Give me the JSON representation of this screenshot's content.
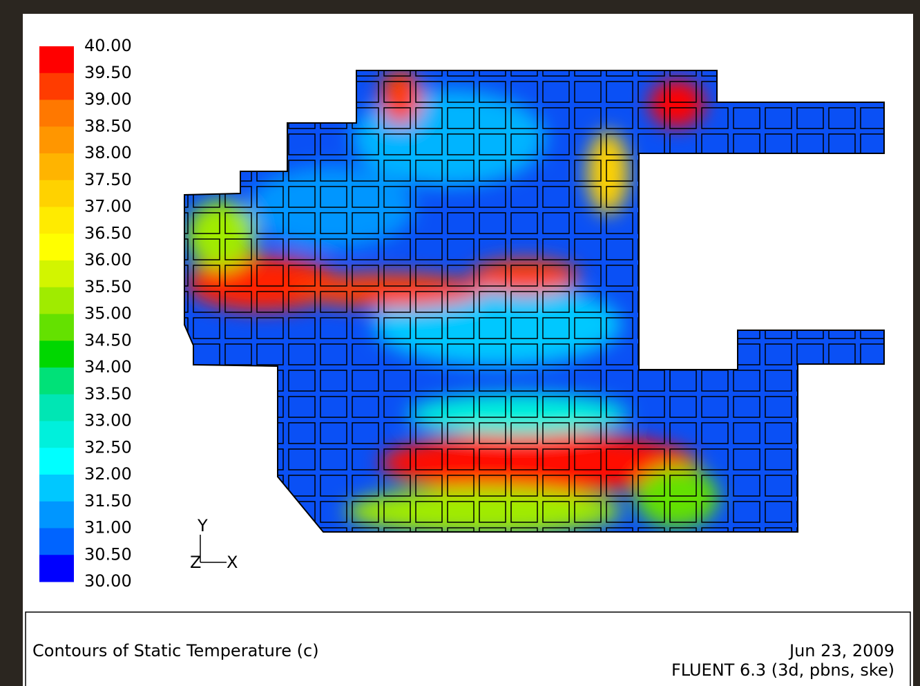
{
  "colorbar": {
    "labels": [
      "40.00",
      "39.50",
      "39.00",
      "38.50",
      "38.00",
      "37.50",
      "37.00",
      "36.50",
      "36.00",
      "35.50",
      "35.00",
      "34.50",
      "34.00",
      "33.50",
      "33.00",
      "32.50",
      "32.00",
      "31.50",
      "31.00",
      "30.50",
      "30.00"
    ],
    "colors": [
      "#ff0000",
      "#ff3c00",
      "#ff7800",
      "#ff9600",
      "#ffb400",
      "#ffd200",
      "#ffeb00",
      "#ffff00",
      "#d2f500",
      "#a0eb00",
      "#64e100",
      "#00d700",
      "#00e178",
      "#00e6b4",
      "#00f0dc",
      "#00ffff",
      "#00c8ff",
      "#0096ff",
      "#0064ff",
      "#0000ff"
    ]
  },
  "axes": {
    "y": "Y",
    "z": "Z",
    "x": "X"
  },
  "footer": {
    "title": "Contours of Static Temperature (c)",
    "date": "Jun 23, 2009",
    "version": "FLUENT 6.3 (3d, pbns, ske)"
  }
}
